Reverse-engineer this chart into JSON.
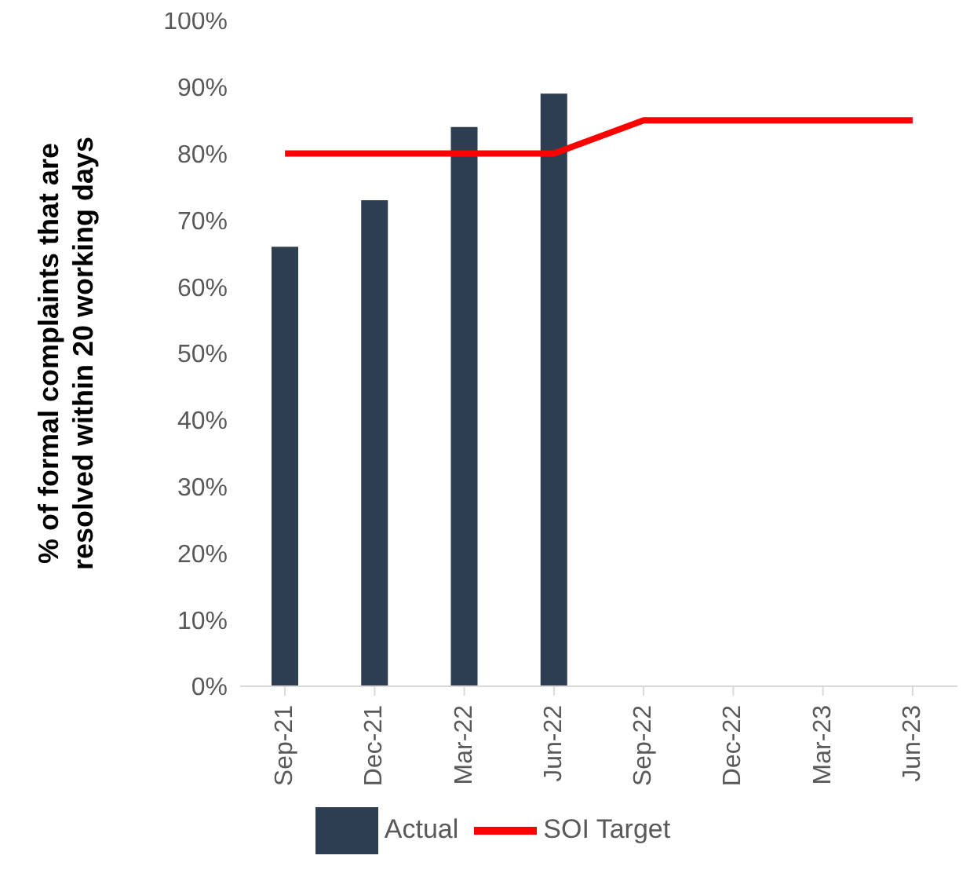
{
  "chart_data": {
    "type": "bar",
    "ylabel": "% of formal complaints that are resolved within 20 working days",
    "categories": [
      "Sep-21",
      "Dec-21",
      "Mar-22",
      "Jun-22",
      "Sep-22",
      "Dec-22",
      "Mar-23",
      "Jun-23"
    ],
    "series": [
      {
        "name": "Actual",
        "color": "#2c3e50",
        "values": [
          66,
          73,
          84,
          89,
          null,
          null,
          null,
          null
        ]
      },
      {
        "name": "SOI Target",
        "type": "line",
        "color": "#ff0000",
        "values": [
          80,
          80,
          80,
          80,
          85,
          85,
          85,
          85
        ]
      }
    ],
    "ylim": [
      0,
      100
    ],
    "yticks": [
      {
        "value": 0,
        "label": "0%"
      },
      {
        "value": 10,
        "label": "10%"
      },
      {
        "value": 20,
        "label": "20%"
      },
      {
        "value": 30,
        "label": "30%"
      },
      {
        "value": 40,
        "label": "40%"
      },
      {
        "value": 50,
        "label": "50%"
      },
      {
        "value": 60,
        "label": "60%"
      },
      {
        "value": 70,
        "label": "70%"
      },
      {
        "value": 80,
        "label": "80%"
      },
      {
        "value": 90,
        "label": "90%"
      },
      {
        "value": 100,
        "label": "100%"
      }
    ],
    "grid": false,
    "legend": "bottom",
    "marker": "none",
    "line_style": "solid"
  }
}
